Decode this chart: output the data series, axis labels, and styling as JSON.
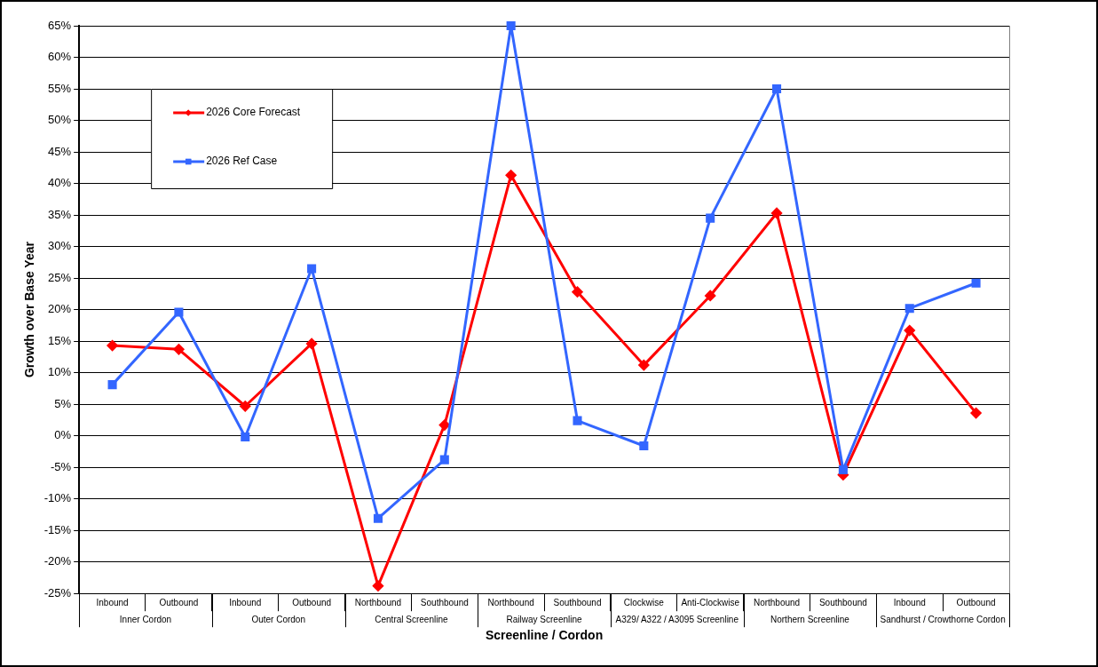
{
  "chart_data": {
    "type": "line",
    "xlabel": "Screenline / Cordon",
    "ylabel": "Growth over Base Year",
    "categories": [
      "Inbound",
      "Outbound",
      "Inbound",
      "Outbound",
      "Northbound",
      "Southbound",
      "Northbound",
      "Southbound",
      "Clockwise",
      "Anti-Clockwise",
      "Northbound",
      "Southbound",
      "Inbound",
      "Outbound"
    ],
    "annotations": [
      "Inner Cordon",
      "Outer Cordon",
      "Central Screenline",
      "Railway Screenline",
      "A329/ A322 / A3095 Screenline",
      "Northern Screenline",
      "Sandhurst / Crowthorne Cordon"
    ],
    "series": [
      {
        "name": "2026 Core Forecast",
        "color": "#ff0000",
        "marker": "diamond",
        "values": [
          14.3,
          13.7,
          4.7,
          14.6,
          -23.8,
          1.7,
          41.3,
          22.8,
          11.2,
          22.2,
          35.3,
          -6.2,
          16.7,
          3.6
        ]
      },
      {
        "name": "2026 Ref Case",
        "color": "#3366ff",
        "marker": "square",
        "values": [
          8.1,
          19.6,
          -0.2,
          26.5,
          -13.1,
          -3.8,
          65,
          2.4,
          -1.6,
          34.5,
          55.0,
          -5.4,
          20.2,
          24.2
        ]
      }
    ],
    "ylim": [
      -25,
      65
    ],
    "yticks": [
      {
        "value": -25,
        "label": "-25%"
      },
      {
        "value": -20,
        "label": "-20%"
      },
      {
        "value": -15,
        "label": "-15%"
      },
      {
        "value": -10,
        "label": "-10%"
      },
      {
        "value": -5,
        "label": "-5%"
      },
      {
        "value": 0,
        "label": "0%"
      },
      {
        "value": 5,
        "label": "5%"
      },
      {
        "value": 10,
        "label": "10%"
      },
      {
        "value": 15,
        "label": "15%"
      },
      {
        "value": 20,
        "label": "20%"
      },
      {
        "value": 25,
        "label": "25%"
      },
      {
        "value": 30,
        "label": "30%"
      },
      {
        "value": 35,
        "label": "35%"
      },
      {
        "value": 40,
        "label": "40%"
      },
      {
        "value": 45,
        "label": "45%"
      },
      {
        "value": 50,
        "label": "50%"
      },
      {
        "value": 55,
        "label": "55%"
      },
      {
        "value": 60,
        "label": "60%"
      },
      {
        "value": 65,
        "label": "65%"
      }
    ],
    "grid": "y",
    "legend": "top left"
  }
}
